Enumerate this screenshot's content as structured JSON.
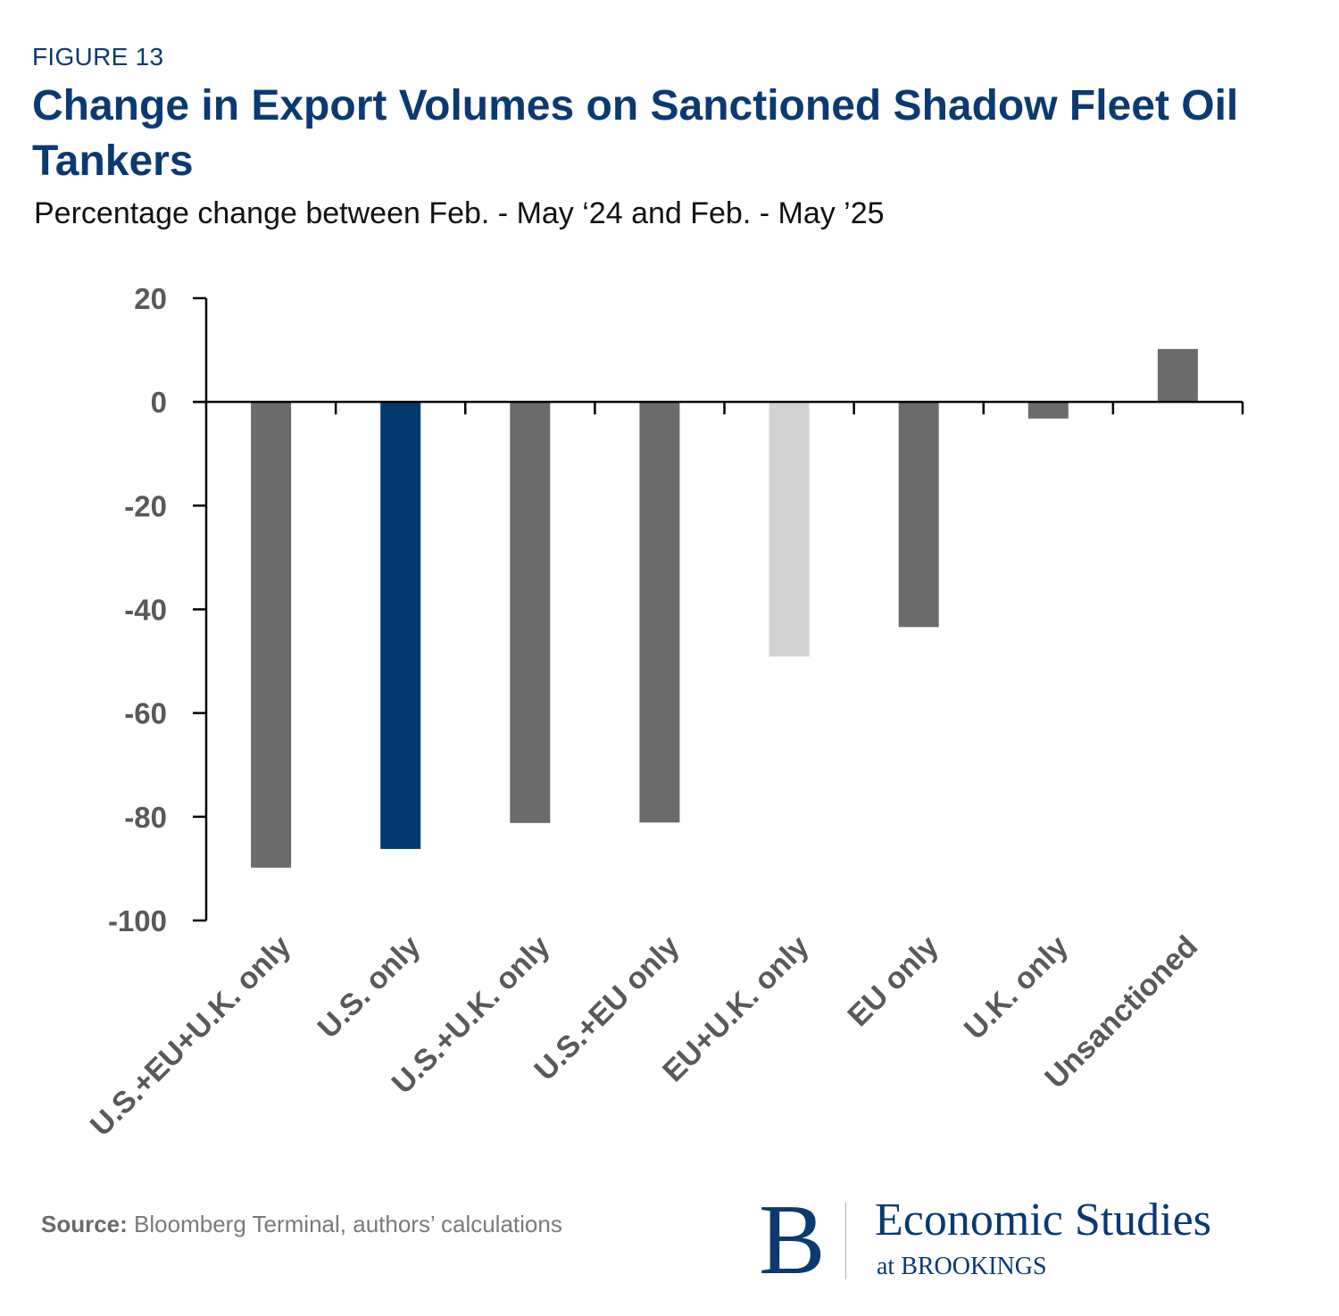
{
  "header": {
    "figure_label": "FIGURE 13",
    "title": "Change in Export Volumes on Sanctioned Shadow Fleet Oil Tankers",
    "subtitle": "Percentage change between Feb. - May ‘24 and Feb. - May ’25"
  },
  "chart_data": {
    "type": "bar",
    "title": "Change in Export Volumes on Sanctioned Shadow Fleet Oil Tankers",
    "subtitle": "Percentage change between Feb. - May ‘24 and Feb. - May ’25",
    "xlabel": "",
    "ylabel": "",
    "ylim": [
      -100,
      20
    ],
    "yticks": [
      20,
      0,
      -20,
      -40,
      -60,
      -80,
      -100
    ],
    "grid": false,
    "legend": "none",
    "categories": [
      "U.S.+EU+U.K. only",
      "U.S. only",
      "U.S.+U.K. only",
      "U.S.+EU only",
      "EU+U.K. only",
      "EU only",
      "U.K. only",
      "Unsanctioned"
    ],
    "values": [
      -89.8,
      -86.2,
      -81.2,
      -81.1,
      -49.1,
      -43.4,
      -3.2,
      10.2
    ],
    "colors": [
      "#6b6b6b",
      "#023a6e",
      "#6b6b6b",
      "#6b6b6b",
      "#d3d3d3",
      "#6b6b6b",
      "#6b6b6b",
      "#6b6b6b"
    ]
  },
  "footer": {
    "source_label": "Source:",
    "source_text": "Bloomberg Terminal, authors’ calculations"
  },
  "logo": {
    "letter": "B",
    "name": "Economic Studies",
    "sub": "at BROOKINGS"
  }
}
